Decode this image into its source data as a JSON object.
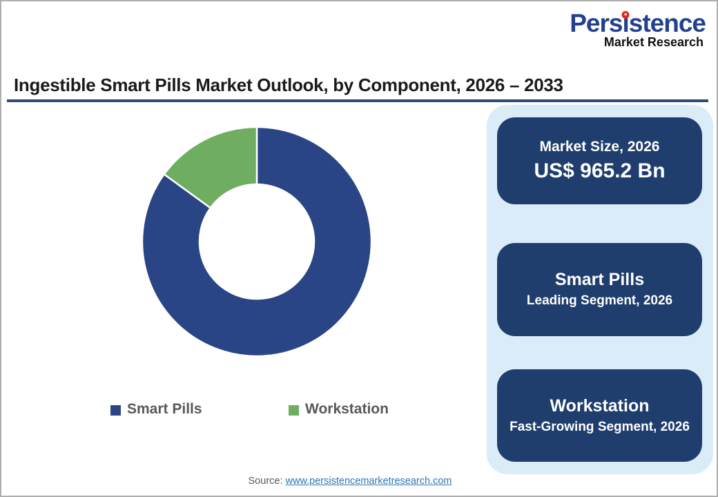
{
  "theme": {
    "pie_blue": "#2a4585",
    "pie_green": "#6fae61",
    "box_navy": "#1f3e6d",
    "panel_blue": "#d9ecf8",
    "underline_navy": "#2d4a7a",
    "logo_blue": "#23408e",
    "logo_red": "#e1251b",
    "link_blue": "#2e75b6",
    "text_gray": "#595959",
    "title_black": "#1a1a1a"
  },
  "logo": {
    "word_pre": "Pers",
    "word_i": "ı",
    "word_post": "stence",
    "star": "★",
    "subtitle": "Market Research"
  },
  "header": {
    "title": "Ingestible Smart Pills Market Outlook, by Component, 2026 – 2033"
  },
  "chart_data": {
    "type": "pie",
    "subtype": "donut",
    "title": "Ingestible Smart Pills Market Outlook, by Component, 2026 – 2033",
    "categories": [
      "Smart Pills",
      "Workstation"
    ],
    "values": [
      85,
      15
    ],
    "unit": "%",
    "colors": [
      "#2a4585",
      "#6fae61"
    ],
    "start_angle_deg": 0,
    "direction": "clockwise",
    "inner_radius_ratio": 0.5,
    "slice_gap_color": "#ffffff",
    "legend_position": "bottom"
  },
  "legend": {
    "items": [
      {
        "label": "Smart Pills",
        "color": "#2a4585"
      },
      {
        "label": "Workstation",
        "color": "#6fae61"
      }
    ]
  },
  "panel": {
    "boxes": [
      {
        "line1": "Market Size, 2026",
        "line2": "US$ 965.2 Bn"
      },
      {
        "line1": "Smart Pills",
        "line2": "Leading Segment, 2026"
      },
      {
        "line1": "Workstation",
        "line2": "Fast-Growing Segment, 2026"
      }
    ]
  },
  "source": {
    "label": "Source:",
    "link": "www.persistencemarketresearch.com"
  }
}
